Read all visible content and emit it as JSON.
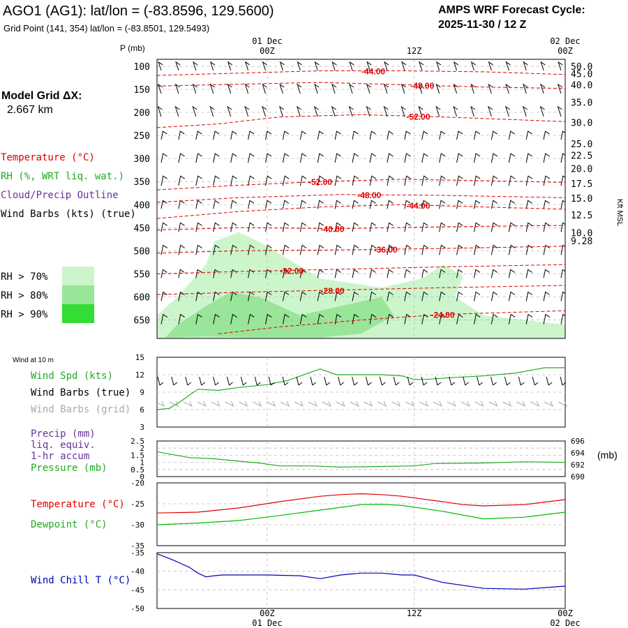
{
  "header": {
    "title": "AGO1 (AG1):  lat/lon = (-83.8596, 129.5600)",
    "grid_point": "Grid Point (141, 354) lat/lon = (-83.8501, 129.5493)",
    "cycle_label": "AMPS WRF Forecast Cycle:",
    "cycle_value": "2025-11-30 / 12  Z",
    "model_grid_label": "Model Grid ΔX:",
    "model_grid_value": "2.667 km"
  },
  "time_axis": {
    "top_labels": [
      {
        "t": 0.27,
        "date": "01 Dec",
        "hour": "00Z"
      },
      {
        "t": 0.63,
        "date": "",
        "hour": "12Z"
      },
      {
        "t": 1.0,
        "date": "02 Dec",
        "hour": "00Z"
      }
    ],
    "bottom_labels": [
      {
        "t": 0.27,
        "hour": "00Z",
        "date": "01 Dec"
      },
      {
        "t": 0.63,
        "hour": "12Z",
        "date": ""
      },
      {
        "t": 1.0,
        "hour": "00Z",
        "date": "02 Dec"
      }
    ]
  },
  "legend": {
    "temperature": "Temperature (°C)",
    "rh": "RH (%, WRT liq. wat.)",
    "cloud": "Cloud/Precip Outline",
    "wind": "Wind Barbs (kts) (true)",
    "rh70": "RH > 70%",
    "rh80": "RH > 80%",
    "rh90": "RH > 90%"
  },
  "colors": {
    "temperature": "#dd0000",
    "rh": "#22aa22",
    "cloud": "#663399",
    "wind": "#000000",
    "rh70": "#ccf5cc",
    "rh80": "#99e599",
    "rh90": "#33dd33",
    "dewpoint": "#00bb00",
    "windchill": "#0000bb",
    "grid": "#999999",
    "barbs_grid": "#aaaaaa"
  },
  "chart_data": [
    {
      "type": "contour",
      "name": "Vertical cross-section",
      "ylabel": "P (mb)",
      "y2label": "Kft MSL",
      "pressure_ticks": [
        100,
        150,
        200,
        250,
        300,
        350,
        400,
        450,
        500,
        550,
        600,
        650
      ],
      "plim": [
        85,
        690
      ],
      "height_ticks": [
        {
          "p": 100,
          "label": "50.0"
        },
        {
          "p": 116,
          "label": "45.0"
        },
        {
          "p": 140,
          "label": "40.0"
        },
        {
          "p": 178,
          "label": "35.0"
        },
        {
          "p": 222,
          "label": "30.0"
        },
        {
          "p": 268,
          "label": "25.0"
        },
        {
          "p": 293,
          "label": "22.5"
        },
        {
          "p": 322,
          "label": "20.0"
        },
        {
          "p": 354,
          "label": "17.5"
        },
        {
          "p": 386,
          "label": "15.0"
        },
        {
          "p": 422,
          "label": "12.5"
        },
        {
          "p": 461,
          "label": "10.0"
        },
        {
          "p": 478,
          "label": "9.28"
        }
      ],
      "temperature_contours": [
        {
          "label": "-44.00",
          "label_t": 0.53,
          "points": [
            [
              0,
              120
            ],
            [
              0.2,
              115
            ],
            [
              0.4,
              110
            ],
            [
              0.6,
              110
            ],
            [
              0.8,
              112
            ],
            [
              1,
              118
            ]
          ]
        },
        {
          "label": "-48.00",
          "label_t": 0.65,
          "points": [
            [
              0,
              143
            ],
            [
              0.2,
              139
            ],
            [
              0.4,
              135
            ],
            [
              0.6,
              140
            ],
            [
              0.8,
              145
            ],
            [
              1,
              148
            ]
          ]
        },
        {
          "label": "-52.00",
          "label_t": 0.64,
          "points": [
            [
              0,
              233
            ],
            [
              0.15,
              225
            ],
            [
              0.3,
              210
            ],
            [
              0.5,
              205
            ],
            [
              0.7,
              210
            ],
            [
              1,
              220
            ]
          ]
        },
        {
          "label": "-52.00",
          "label_t": 0.4,
          "points": [
            [
              0,
              368
            ],
            [
              0.2,
              358
            ],
            [
              0.4,
              350
            ],
            [
              0.6,
              345
            ],
            [
              0.8,
              348
            ],
            [
              1,
              352
            ]
          ]
        },
        {
          "label": "-48.00",
          "label_t": 0.52,
          "points": [
            [
              0,
              395
            ],
            [
              0.2,
              385
            ],
            [
              0.45,
              378
            ],
            [
              0.7,
              380
            ],
            [
              1,
              385
            ]
          ]
        },
        {
          "label": "-44.00",
          "label_t": 0.64,
          "points": [
            [
              0,
              430
            ],
            [
              0.2,
              415
            ],
            [
              0.4,
              405
            ],
            [
              0.6,
              400
            ],
            [
              0.8,
              405
            ],
            [
              1,
              410
            ]
          ]
        },
        {
          "label": "-40.00",
          "label_t": 0.43,
          "points": [
            [
              0,
              455
            ],
            [
              0.2,
              450
            ],
            [
              0.45,
              452
            ],
            [
              0.7,
              448
            ],
            [
              1,
              445
            ]
          ]
        },
        {
          "label": "-36.00",
          "label_t": 0.56,
          "points": [
            [
              0,
              505
            ],
            [
              0.2,
              500
            ],
            [
              0.45,
              498
            ],
            [
              0.7,
              495
            ],
            [
              1,
              490
            ]
          ]
        },
        {
          "label": "-32.00",
          "label_t": 0.33,
          "points": [
            [
              0,
              550
            ],
            [
              0.2,
              545
            ],
            [
              0.45,
              540
            ],
            [
              0.7,
              535
            ],
            [
              1,
              530
            ]
          ]
        },
        {
          "label": "-28.00",
          "label_t": 0.43,
          "points": [
            [
              0,
              595
            ],
            [
              0.2,
              590
            ],
            [
              0.45,
              585
            ],
            [
              0.7,
              580
            ],
            [
              1,
              575
            ]
          ]
        },
        {
          "label": "-24.00",
          "label_t": 0.7,
          "points": [
            [
              0.15,
              680
            ],
            [
              0.3,
              665
            ],
            [
              0.5,
              650
            ],
            [
              0.7,
              638
            ],
            [
              1,
              630
            ]
          ]
        }
      ],
      "rh_regions": [
        {
          "level": 70,
          "points": [
            [
              0,
              690
            ],
            [
              0,
              640
            ],
            [
              0.05,
              600
            ],
            [
              0.12,
              530
            ],
            [
              0.14,
              480
            ],
            [
              0.2,
              460
            ],
            [
              0.25,
              480
            ],
            [
              0.4,
              560
            ],
            [
              0.55,
              580
            ],
            [
              0.65,
              560
            ],
            [
              0.7,
              530
            ],
            [
              0.75,
              555
            ],
            [
              0.73,
              600
            ],
            [
              0.8,
              640
            ],
            [
              1,
              660
            ],
            [
              1,
              690
            ]
          ]
        },
        {
          "level": 80,
          "points": [
            [
              0.02,
              688
            ],
            [
              0.05,
              660
            ],
            [
              0.12,
              620
            ],
            [
              0.18,
              590
            ],
            [
              0.25,
              600
            ],
            [
              0.35,
              640
            ],
            [
              0.45,
              620
            ],
            [
              0.55,
              600
            ],
            [
              0.58,
              640
            ],
            [
              0.5,
              680
            ],
            [
              0.4,
              688
            ],
            [
              0.25,
              688
            ],
            [
              0.12,
              686
            ]
          ]
        }
      ]
    },
    {
      "type": "line",
      "name": "Wind at 10 m",
      "title": "Wind at 10 m",
      "ylabel": "Wind Spd (kts)",
      "ylim": [
        3,
        15
      ],
      "yticks": [
        3,
        6,
        9,
        12,
        15
      ],
      "series": [
        {
          "name": "Wind Spd (kts)",
          "color": "#22aa22",
          "points": [
            [
              0,
              6
            ],
            [
              0.03,
              6.2
            ],
            [
              0.06,
              7.5
            ],
            [
              0.1,
              9.5
            ],
            [
              0.15,
              9.3
            ],
            [
              0.2,
              9.8
            ],
            [
              0.27,
              10.3
            ],
            [
              0.32,
              11
            ],
            [
              0.38,
              12.5
            ],
            [
              0.4,
              13
            ],
            [
              0.44,
              12
            ],
            [
              0.55,
              12
            ],
            [
              0.6,
              11.8
            ],
            [
              0.63,
              11.2
            ],
            [
              0.66,
              11.2
            ],
            [
              0.72,
              11.5
            ],
            [
              0.8,
              11.8
            ],
            [
              0.88,
              12.3
            ],
            [
              0.95,
              13.2
            ],
            [
              1,
              13.2
            ]
          ]
        }
      ]
    },
    {
      "type": "line",
      "name": "Precip / Pressure",
      "ylim": [
        0,
        2.5
      ],
      "yticks": [
        0,
        0.5,
        1.0,
        1.5,
        2.0,
        2.5
      ],
      "y2lim": [
        690,
        696
      ],
      "y2ticks": [
        690,
        692,
        694,
        696
      ],
      "y2label": "(mb)",
      "series": [
        {
          "name": "Pressure (mb)",
          "axis": "y2",
          "color": "#22aa22",
          "points": [
            [
              0,
              694.2
            ],
            [
              0.03,
              693.8
            ],
            [
              0.08,
              693.2
            ],
            [
              0.14,
              693
            ],
            [
              0.2,
              692.6
            ],
            [
              0.25,
              692.3
            ],
            [
              0.3,
              691.8
            ],
            [
              0.38,
              691.8
            ],
            [
              0.45,
              691.6
            ],
            [
              0.55,
              691.7
            ],
            [
              0.63,
              691.8
            ],
            [
              0.68,
              692.2
            ],
            [
              0.8,
              692.3
            ],
            [
              0.9,
              692.5
            ],
            [
              1,
              692.4
            ]
          ]
        }
      ]
    },
    {
      "type": "line",
      "name": "Temperature / Dewpoint",
      "ylim": [
        -35,
        -20
      ],
      "yticks": [
        -35,
        -30,
        -25,
        -20
      ],
      "series": [
        {
          "name": "Temperature (°C)",
          "color": "#dd0000",
          "points": [
            [
              0,
              -27.2
            ],
            [
              0.1,
              -27
            ],
            [
              0.2,
              -26
            ],
            [
              0.3,
              -24.5
            ],
            [
              0.4,
              -23.2
            ],
            [
              0.45,
              -22.8
            ],
            [
              0.5,
              -22.6
            ],
            [
              0.55,
              -22.8
            ],
            [
              0.6,
              -23.2
            ],
            [
              0.7,
              -24.5
            ],
            [
              0.75,
              -25.2
            ],
            [
              0.8,
              -25.5
            ],
            [
              0.9,
              -25.2
            ],
            [
              1,
              -24
            ]
          ]
        },
        {
          "name": "Dewpoint (°C)",
          "color": "#00bb00",
          "points": [
            [
              0,
              -30
            ],
            [
              0.1,
              -29.6
            ],
            [
              0.2,
              -29
            ],
            [
              0.3,
              -27.8
            ],
            [
              0.4,
              -26.5
            ],
            [
              0.5,
              -25.2
            ],
            [
              0.55,
              -25.1
            ],
            [
              0.6,
              -25.4
            ],
            [
              0.7,
              -26.8
            ],
            [
              0.8,
              -28.6
            ],
            [
              0.9,
              -28.2
            ],
            [
              1,
              -27
            ]
          ]
        }
      ]
    },
    {
      "type": "line",
      "name": "Wind Chill",
      "ylim": [
        -50,
        -35
      ],
      "yticks": [
        -50,
        -45,
        -40,
        -35
      ],
      "series": [
        {
          "name": "Wind Chill T (°C)",
          "color": "#0000bb",
          "points": [
            [
              0,
              -35.3
            ],
            [
              0.04,
              -37
            ],
            [
              0.08,
              -39
            ],
            [
              0.1,
              -40.5
            ],
            [
              0.12,
              -41.5
            ],
            [
              0.14,
              -41.2
            ],
            [
              0.16,
              -41
            ],
            [
              0.27,
              -41
            ],
            [
              0.35,
              -41.2
            ],
            [
              0.4,
              -42
            ],
            [
              0.45,
              -41
            ],
            [
              0.5,
              -40.5
            ],
            [
              0.55,
              -40.5
            ],
            [
              0.6,
              -41
            ],
            [
              0.63,
              -41
            ],
            [
              0.7,
              -43
            ],
            [
              0.8,
              -44.6
            ],
            [
              0.9,
              -44.8
            ],
            [
              1,
              -44
            ]
          ]
        }
      ]
    }
  ],
  "panels": {
    "wind10": {
      "title": "Wind at 10 m",
      "spd_label": "Wind Spd (kts)",
      "barbs_true": "Wind Barbs (true)",
      "barbs_grid": "Wind Barbs (grid)"
    },
    "precip": {
      "precip_label": "Precip (mm)",
      "liq_label": "liq. equiv.",
      "accum_label": "1-hr accum",
      "pressure_label": "Pressure (mb)",
      "right_unit": "(mb)"
    },
    "temp": {
      "temp_label": "Temperature (°C)",
      "dew_label": "Dewpoint (°C)"
    },
    "chill": {
      "chill_label": "Wind Chill T (°C)"
    }
  }
}
